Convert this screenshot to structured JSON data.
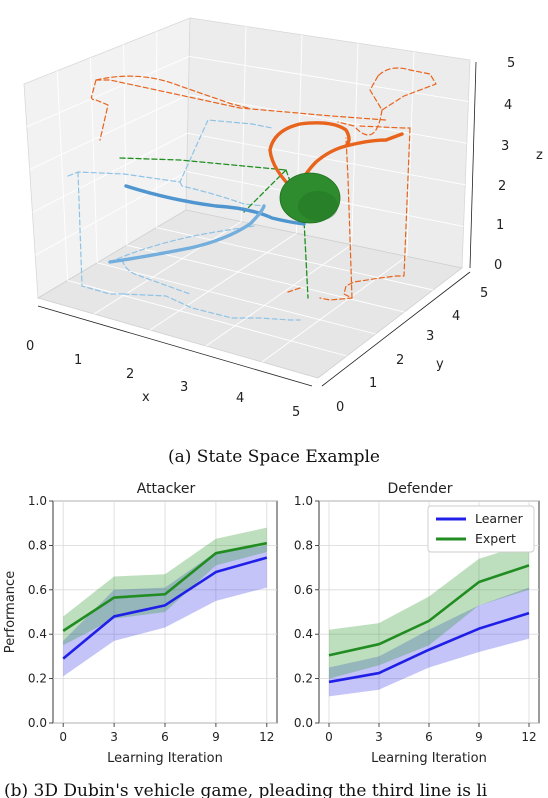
{
  "chart_data": [
    {
      "type": "scatter",
      "subtype": "3d-trajectories",
      "xlabel": "x",
      "ylabel": "y",
      "zlabel": "z",
      "xlim": [
        0,
        5
      ],
      "ylim": [
        0,
        5
      ],
      "zlim": [
        0,
        5
      ],
      "x_ticks": [
        "0",
        "1",
        "2",
        "3",
        "4",
        "5"
      ],
      "y_ticks": [
        "0",
        "1",
        "2",
        "3",
        "4",
        "5"
      ],
      "z_ticks": [
        "0",
        "1",
        "2",
        "3",
        "4",
        "5"
      ],
      "grid": true,
      "colors": {
        "blue": "#4f95cf",
        "light_blue": "#8ec3e6",
        "orange": "#e8631c",
        "green_goal": "#2e8b2e",
        "green_dashed": "#1f8f1f"
      },
      "caption": "(a) State Space Example"
    },
    {
      "type": "line",
      "title": "Attacker",
      "xlabel": "Learning Iteration",
      "ylabel": "Performance",
      "x": [
        0,
        3,
        6,
        9,
        12
      ],
      "x_ticks": [
        "0",
        "3",
        "6",
        "9",
        "12"
      ],
      "y_ticks": [
        "0.0",
        "0.2",
        "0.4",
        "0.6",
        "0.8",
        "1.0"
      ],
      "ylim": [
        0,
        1.0
      ],
      "xlim": [
        -0.6,
        12.6
      ],
      "grid": true,
      "series": [
        {
          "name": "Learner",
          "color": "#1f1fe8",
          "values": [
            0.29,
            0.48,
            0.53,
            0.68,
            0.745
          ],
          "lower": [
            0.21,
            0.37,
            0.43,
            0.55,
            0.61
          ],
          "upper": [
            0.37,
            0.6,
            0.61,
            0.77,
            0.8
          ]
        },
        {
          "name": "Expert",
          "color": "#218c21",
          "values": [
            0.415,
            0.565,
            0.58,
            0.765,
            0.81
          ],
          "lower": [
            0.35,
            0.47,
            0.5,
            0.71,
            0.77
          ],
          "upper": [
            0.48,
            0.66,
            0.67,
            0.83,
            0.88
          ]
        }
      ]
    },
    {
      "type": "line",
      "title": "Defender",
      "xlabel": "Learning Iteration",
      "x": [
        0,
        3,
        6,
        9,
        12
      ],
      "x_ticks": [
        "0",
        "3",
        "6",
        "9",
        "12"
      ],
      "y_ticks": [
        "0.0",
        "0.2",
        "0.4",
        "0.6",
        "0.8",
        "1.0"
      ],
      "ylim": [
        0,
        1.0
      ],
      "xlim": [
        -0.6,
        12.6
      ],
      "grid": true,
      "legend": "top-right",
      "series": [
        {
          "name": "Learner",
          "color": "#1f1fe8",
          "values": [
            0.185,
            0.225,
            0.33,
            0.425,
            0.495
          ],
          "lower": [
            0.12,
            0.15,
            0.25,
            0.32,
            0.38
          ],
          "upper": [
            0.25,
            0.3,
            0.42,
            0.53,
            0.61
          ]
        },
        {
          "name": "Expert",
          "color": "#218c21",
          "values": [
            0.305,
            0.355,
            0.46,
            0.635,
            0.71
          ],
          "lower": [
            0.2,
            0.26,
            0.35,
            0.53,
            0.6
          ],
          "upper": [
            0.42,
            0.45,
            0.57,
            0.74,
            0.81
          ]
        }
      ]
    }
  ],
  "bottom_caption": "(b) 3D Dubin's vehicle game, pleading the third line is li"
}
